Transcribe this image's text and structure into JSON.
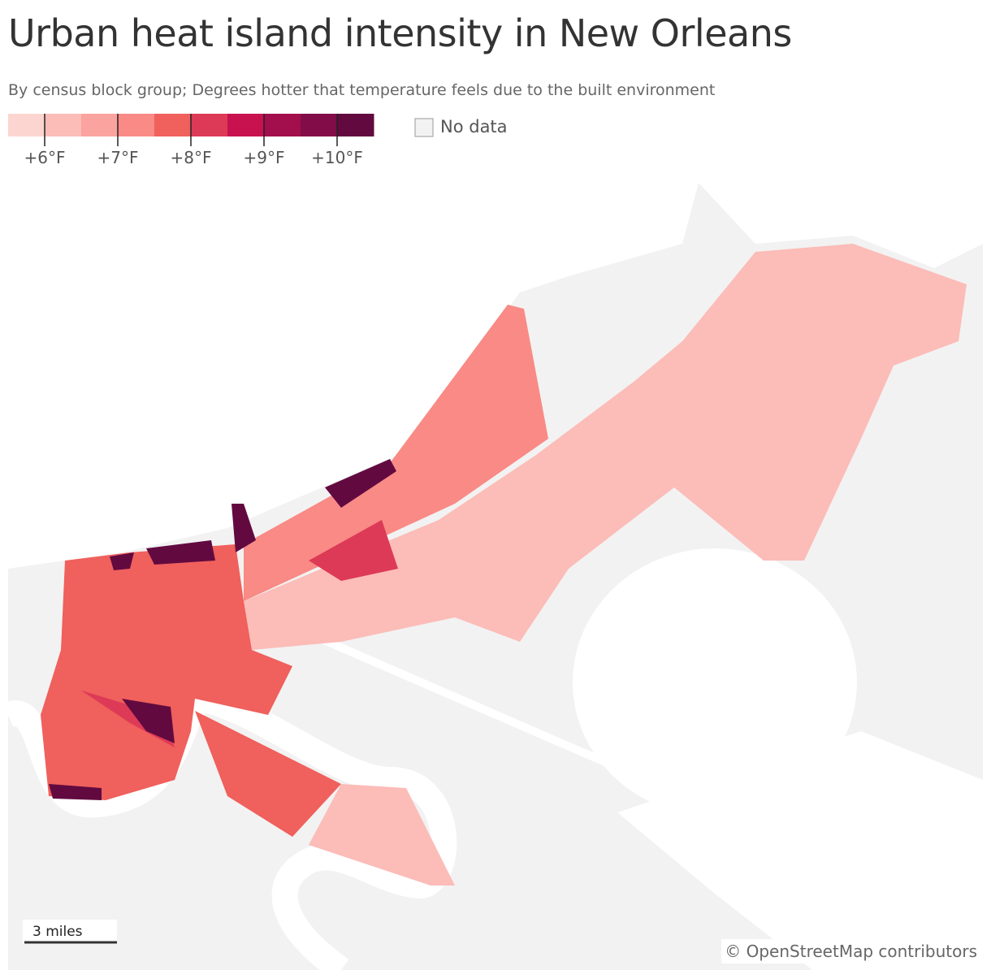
{
  "header": {
    "title": "Urban heat island intensity in New Orleans",
    "subtitle": "By census block group; Degrees hotter that temperature feels due to the built environment"
  },
  "legend": {
    "colors": [
      "#fdd5d0",
      "#fcbcb8",
      "#fba39f",
      "#f98a85",
      "#f0605c",
      "#dd3a57",
      "#c8114f",
      "#a30e4d",
      "#820c48",
      "#620a40"
    ],
    "range": [
      5.5,
      10.5
    ],
    "ticks": [
      {
        "value": 6,
        "label": "+6°F"
      },
      {
        "value": 7,
        "label": "+7°F"
      },
      {
        "value": 8,
        "label": "+8°F"
      },
      {
        "value": 9,
        "label": "+9°F"
      },
      {
        "value": 10,
        "label": "+10°F"
      }
    ],
    "no_data": {
      "label": "No data",
      "color": "#f2f2f2"
    }
  },
  "scale_bar": "3 miles",
  "attribution": "© OpenStreetMap contributors"
}
